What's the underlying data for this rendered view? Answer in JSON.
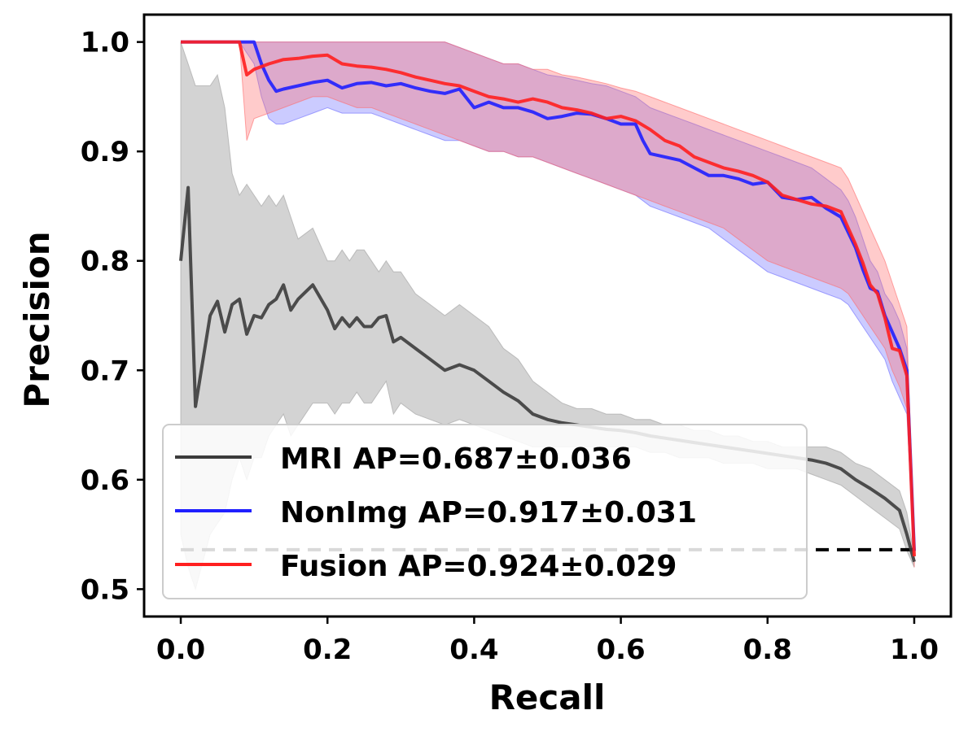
{
  "chart_data": {
    "type": "line",
    "xlabel": "Recall",
    "ylabel": "Precision",
    "xlim": [
      -0.05,
      1.05
    ],
    "ylim": [
      0.475,
      1.025
    ],
    "xticks": [
      "0.0",
      "0.2",
      "0.4",
      "0.6",
      "0.8",
      "1.0"
    ],
    "yticks": [
      "0.5",
      "0.6",
      "0.7",
      "0.8",
      "0.9",
      "1.0"
    ],
    "legend_position": "lower-left",
    "grid": false,
    "baseline": {
      "y": 0.536,
      "style": "dashed"
    },
    "series": [
      {
        "name": "MRI AP=0.687±0.036",
        "color": "#3c3c3c",
        "band_color": "#9e9e9e",
        "x": [
          0.0,
          0.01,
          0.02,
          0.04,
          0.05,
          0.06,
          0.07,
          0.08,
          0.09,
          0.1,
          0.11,
          0.12,
          0.13,
          0.14,
          0.15,
          0.16,
          0.18,
          0.2,
          0.21,
          0.22,
          0.23,
          0.24,
          0.25,
          0.26,
          0.27,
          0.28,
          0.29,
          0.3,
          0.32,
          0.34,
          0.36,
          0.38,
          0.4,
          0.42,
          0.44,
          0.46,
          0.48,
          0.5,
          0.52,
          0.54,
          0.56,
          0.58,
          0.6,
          0.62,
          0.64,
          0.66,
          0.68,
          0.7,
          0.72,
          0.74,
          0.76,
          0.78,
          0.8,
          0.82,
          0.84,
          0.86,
          0.88,
          0.9,
          0.92,
          0.94,
          0.96,
          0.98,
          0.99,
          1.0
        ],
        "y": [
          0.8,
          0.867,
          0.667,
          0.75,
          0.763,
          0.735,
          0.76,
          0.765,
          0.733,
          0.75,
          0.748,
          0.76,
          0.765,
          0.778,
          0.755,
          0.765,
          0.778,
          0.755,
          0.738,
          0.748,
          0.74,
          0.748,
          0.74,
          0.74,
          0.748,
          0.75,
          0.726,
          0.73,
          0.72,
          0.71,
          0.7,
          0.705,
          0.7,
          0.69,
          0.68,
          0.672,
          0.66,
          0.655,
          0.652,
          0.65,
          0.648,
          0.646,
          0.645,
          0.643,
          0.64,
          0.638,
          0.636,
          0.634,
          0.632,
          0.63,
          0.628,
          0.626,
          0.624,
          0.622,
          0.62,
          0.618,
          0.615,
          0.61,
          0.6,
          0.592,
          0.583,
          0.572,
          0.55,
          0.525
        ],
        "band_upper": [
          1.0,
          0.98,
          0.96,
          0.96,
          0.97,
          0.94,
          0.88,
          0.86,
          0.87,
          0.86,
          0.85,
          0.86,
          0.85,
          0.86,
          0.84,
          0.82,
          0.83,
          0.8,
          0.8,
          0.81,
          0.8,
          0.81,
          0.81,
          0.8,
          0.79,
          0.8,
          0.79,
          0.79,
          0.77,
          0.76,
          0.75,
          0.76,
          0.75,
          0.74,
          0.72,
          0.71,
          0.69,
          0.68,
          0.67,
          0.665,
          0.665,
          0.66,
          0.66,
          0.655,
          0.655,
          0.65,
          0.65,
          0.645,
          0.645,
          0.64,
          0.64,
          0.635,
          0.635,
          0.63,
          0.63,
          0.63,
          0.63,
          0.625,
          0.615,
          0.61,
          0.6,
          0.59,
          0.57,
          0.53
        ],
        "band_lower": [
          0.55,
          0.52,
          0.5,
          0.55,
          0.56,
          0.57,
          0.6,
          0.62,
          0.6,
          0.62,
          0.62,
          0.64,
          0.65,
          0.66,
          0.64,
          0.65,
          0.67,
          0.67,
          0.66,
          0.67,
          0.67,
          0.68,
          0.67,
          0.67,
          0.68,
          0.69,
          0.66,
          0.67,
          0.66,
          0.655,
          0.65,
          0.655,
          0.65,
          0.645,
          0.64,
          0.635,
          0.63,
          0.63,
          0.63,
          0.63,
          0.63,
          0.63,
          0.63,
          0.63,
          0.625,
          0.625,
          0.62,
          0.62,
          0.62,
          0.615,
          0.615,
          0.615,
          0.61,
          0.61,
          0.61,
          0.605,
          0.6,
          0.595,
          0.585,
          0.575,
          0.565,
          0.555,
          0.535,
          0.52
        ]
      },
      {
        "name": "NonImg AP=0.917±0.031",
        "color": "#1f1fff",
        "band_color": "#6b6bff",
        "x": [
          0.0,
          0.08,
          0.1,
          0.11,
          0.12,
          0.13,
          0.14,
          0.16,
          0.18,
          0.2,
          0.22,
          0.24,
          0.26,
          0.28,
          0.3,
          0.32,
          0.34,
          0.36,
          0.38,
          0.4,
          0.42,
          0.44,
          0.46,
          0.48,
          0.5,
          0.52,
          0.54,
          0.56,
          0.58,
          0.6,
          0.62,
          0.63,
          0.64,
          0.66,
          0.68,
          0.7,
          0.72,
          0.74,
          0.76,
          0.78,
          0.8,
          0.82,
          0.84,
          0.86,
          0.88,
          0.9,
          0.91,
          0.92,
          0.93,
          0.94,
          0.95,
          0.96,
          0.97,
          0.98,
          0.99,
          1.0
        ],
        "y": [
          1.0,
          1.0,
          1.0,
          0.98,
          0.965,
          0.955,
          0.957,
          0.96,
          0.963,
          0.965,
          0.958,
          0.962,
          0.963,
          0.96,
          0.962,
          0.958,
          0.955,
          0.953,
          0.957,
          0.94,
          0.945,
          0.94,
          0.94,
          0.936,
          0.93,
          0.932,
          0.935,
          0.934,
          0.93,
          0.925,
          0.925,
          0.91,
          0.898,
          0.895,
          0.892,
          0.885,
          0.878,
          0.878,
          0.875,
          0.87,
          0.872,
          0.858,
          0.856,
          0.858,
          0.848,
          0.84,
          0.826,
          0.812,
          0.792,
          0.775,
          0.772,
          0.75,
          0.735,
          0.72,
          0.7,
          0.535
        ],
        "band_upper": [
          1.0,
          1.0,
          1.0,
          1.0,
          1.0,
          1.0,
          1.0,
          1.0,
          1.0,
          1.0,
          1.0,
          1.0,
          1.0,
          1.0,
          1.0,
          1.0,
          1.0,
          1.0,
          0.995,
          0.99,
          0.985,
          0.98,
          0.98,
          0.975,
          0.97,
          0.968,
          0.965,
          0.962,
          0.96,
          0.955,
          0.95,
          0.945,
          0.94,
          0.935,
          0.93,
          0.925,
          0.92,
          0.915,
          0.91,
          0.905,
          0.9,
          0.895,
          0.89,
          0.885,
          0.875,
          0.865,
          0.855,
          0.84,
          0.82,
          0.8,
          0.79,
          0.77,
          0.76,
          0.745,
          0.72,
          0.54
        ],
        "band_lower": [
          1.0,
          1.0,
          0.98,
          0.95,
          0.93,
          0.925,
          0.925,
          0.93,
          0.935,
          0.94,
          0.935,
          0.935,
          0.935,
          0.93,
          0.925,
          0.92,
          0.915,
          0.91,
          0.91,
          0.905,
          0.9,
          0.9,
          0.895,
          0.895,
          0.89,
          0.885,
          0.88,
          0.875,
          0.87,
          0.865,
          0.86,
          0.855,
          0.85,
          0.845,
          0.84,
          0.835,
          0.83,
          0.82,
          0.81,
          0.8,
          0.79,
          0.785,
          0.78,
          0.775,
          0.77,
          0.765,
          0.76,
          0.75,
          0.74,
          0.73,
          0.72,
          0.71,
          0.69,
          0.675,
          0.66,
          0.53
        ]
      },
      {
        "name": "Fusion AP=0.924±0.029",
        "color": "#ff1f1f",
        "band_color": "#ff6b6b",
        "x": [
          0.0,
          0.08,
          0.09,
          0.1,
          0.12,
          0.14,
          0.16,
          0.18,
          0.2,
          0.22,
          0.24,
          0.26,
          0.28,
          0.3,
          0.32,
          0.34,
          0.36,
          0.38,
          0.4,
          0.42,
          0.44,
          0.46,
          0.48,
          0.5,
          0.52,
          0.54,
          0.56,
          0.58,
          0.6,
          0.62,
          0.64,
          0.66,
          0.68,
          0.7,
          0.72,
          0.74,
          0.76,
          0.78,
          0.8,
          0.82,
          0.84,
          0.86,
          0.88,
          0.9,
          0.91,
          0.92,
          0.93,
          0.94,
          0.95,
          0.96,
          0.97,
          0.98,
          0.99,
          1.0
        ],
        "y": [
          1.0,
          1.0,
          0.97,
          0.975,
          0.98,
          0.984,
          0.985,
          0.987,
          0.988,
          0.98,
          0.978,
          0.977,
          0.975,
          0.972,
          0.968,
          0.965,
          0.962,
          0.96,
          0.955,
          0.95,
          0.948,
          0.945,
          0.948,
          0.945,
          0.94,
          0.938,
          0.935,
          0.93,
          0.932,
          0.928,
          0.92,
          0.91,
          0.905,
          0.895,
          0.89,
          0.885,
          0.882,
          0.878,
          0.872,
          0.86,
          0.856,
          0.852,
          0.85,
          0.845,
          0.83,
          0.815,
          0.798,
          0.778,
          0.77,
          0.748,
          0.72,
          0.718,
          0.695,
          0.53
        ],
        "band_upper": [
          1.0,
          1.0,
          1.0,
          1.0,
          1.0,
          1.0,
          1.0,
          1.0,
          1.0,
          1.0,
          1.0,
          1.0,
          1.0,
          1.0,
          1.0,
          1.0,
          1.0,
          0.995,
          0.99,
          0.985,
          0.98,
          0.98,
          0.975,
          0.975,
          0.97,
          0.968,
          0.965,
          0.962,
          0.958,
          0.955,
          0.95,
          0.945,
          0.94,
          0.935,
          0.93,
          0.925,
          0.92,
          0.915,
          0.91,
          0.905,
          0.9,
          0.895,
          0.89,
          0.885,
          0.875,
          0.86,
          0.845,
          0.83,
          0.815,
          0.8,
          0.78,
          0.76,
          0.74,
          0.54
        ],
        "band_lower": [
          1.0,
          1.0,
          0.91,
          0.93,
          0.935,
          0.94,
          0.945,
          0.95,
          0.95,
          0.945,
          0.94,
          0.94,
          0.935,
          0.93,
          0.925,
          0.92,
          0.915,
          0.91,
          0.905,
          0.9,
          0.9,
          0.895,
          0.895,
          0.89,
          0.885,
          0.88,
          0.875,
          0.87,
          0.865,
          0.86,
          0.855,
          0.85,
          0.845,
          0.84,
          0.835,
          0.83,
          0.82,
          0.81,
          0.8,
          0.795,
          0.79,
          0.785,
          0.78,
          0.775,
          0.77,
          0.76,
          0.75,
          0.74,
          0.73,
          0.72,
          0.7,
          0.685,
          0.665,
          0.52
        ]
      }
    ]
  }
}
